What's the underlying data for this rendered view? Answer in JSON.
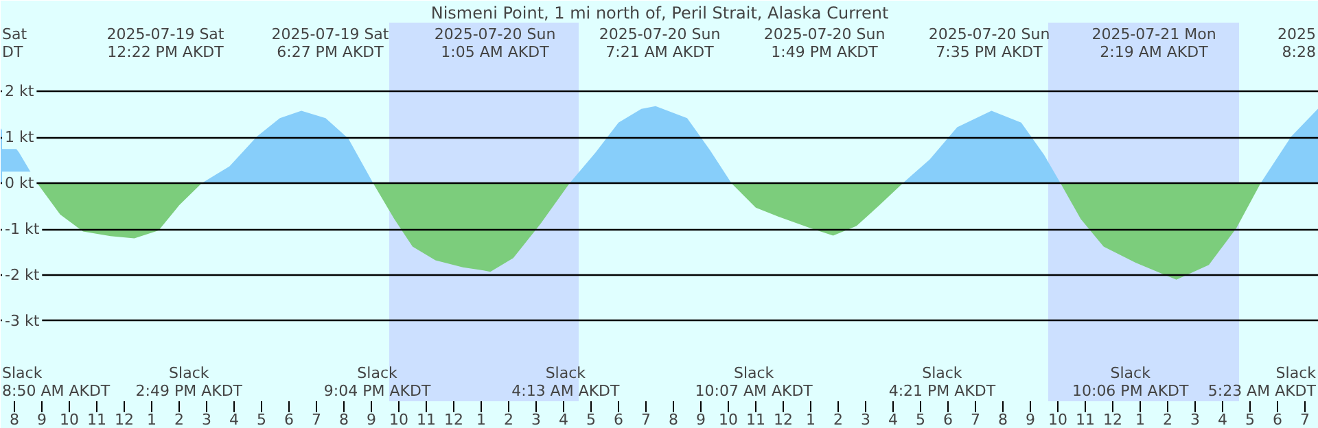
{
  "chart_data": {
    "type": "area",
    "title": "Nismeni Point, 1 mi north of, Peril Strait, Alaska Current",
    "x": [
      "2025-07-19T07:30",
      "2025-07-19T08:10",
      "2025-07-19T08:50",
      "2025-07-19T09:40",
      "2025-07-19T10:30",
      "2025-07-19T11:30",
      "2025-07-19T12:22",
      "2025-07-19T13:15",
      "2025-07-19T14:00",
      "2025-07-19T14:49",
      "2025-07-19T15:50",
      "2025-07-19T16:50",
      "2025-07-19T17:40",
      "2025-07-19T18:27",
      "2025-07-19T19:20",
      "2025-07-19T20:10",
      "2025-07-19T21:04",
      "2025-07-19T21:50",
      "2025-07-19T22:30",
      "2025-07-19T23:20",
      "2025-07-20T00:20",
      "2025-07-20T01:05",
      "2025-07-20T01:20",
      "2025-07-20T02:10",
      "2025-07-20T03:10",
      "2025-07-20T04:13",
      "2025-07-20T05:10",
      "2025-07-20T06:00",
      "2025-07-20T06:50",
      "2025-07-20T07:21",
      "2025-07-20T08:30",
      "2025-07-20T09:20",
      "2025-07-20T10:07",
      "2025-07-20T11:00",
      "2025-07-20T11:50",
      "2025-07-20T13:00",
      "2025-07-20T13:49",
      "2025-07-20T14:40",
      "2025-07-20T15:30",
      "2025-07-20T16:21",
      "2025-07-20T17:20",
      "2025-07-20T18:20",
      "2025-07-20T19:35",
      "2025-07-20T20:40",
      "2025-07-20T21:30",
      "2025-07-20T22:06",
      "2025-07-20T22:50",
      "2025-07-20T23:40",
      "2025-07-21T00:50",
      "2025-07-21T02:19",
      "2025-07-21T03:30",
      "2025-07-21T04:30",
      "2025-07-21T05:23",
      "2025-07-21T06:30",
      "2025-07-21T07:30"
    ],
    "series": [
      {
        "color": "#87cefa",
        "values": [
          1.2,
          0.67,
          0,
          null,
          null,
          null,
          null,
          null,
          null,
          0,
          0.37,
          1.02,
          1.42,
          1.58,
          1.42,
          0.97,
          0,
          null,
          null,
          null,
          null,
          null,
          null,
          null,
          null,
          0,
          0.67,
          1.32,
          1.62,
          1.68,
          1.42,
          0.72,
          0,
          null,
          null,
          null,
          null,
          null,
          null,
          0,
          0.52,
          1.22,
          1.58,
          1.32,
          0.62,
          0,
          null,
          null,
          null,
          null,
          null,
          null,
          0,
          1.02,
          1.64
        ]
      },
      {
        "color": "#7ccd7c",
        "values": [
          null,
          null,
          0,
          -0.68,
          -1.05,
          -1.15,
          -1.2,
          -1.03,
          -0.48,
          0,
          null,
          null,
          null,
          null,
          null,
          null,
          0,
          -0.78,
          -1.38,
          -1.68,
          -1.83,
          -1.9,
          -1.93,
          -1.63,
          -0.88,
          0,
          null,
          null,
          null,
          null,
          null,
          null,
          0,
          -0.53,
          -0.73,
          -0.98,
          -1.14,
          -0.93,
          -0.48,
          0,
          null,
          null,
          null,
          null,
          null,
          0,
          -0.78,
          -1.38,
          -1.73,
          -2.1,
          -1.78,
          -0.98,
          0,
          null,
          null
        ]
      }
    ],
    "xlim": [
      "2025-07-19T07:30",
      "2025-07-21T07:30"
    ],
    "ylim": [
      -4.75,
      3.5
    ],
    "xticks": [
      {
        "value": "2025-07-19T08:00",
        "label": "8"
      },
      {
        "value": "2025-07-19T09:00",
        "label": "9"
      },
      {
        "value": "2025-07-19T10:00",
        "label": "10"
      },
      {
        "value": "2025-07-19T11:00",
        "label": "11"
      },
      {
        "value": "2025-07-19T12:00",
        "label": "12"
      },
      {
        "value": "2025-07-19T13:00",
        "label": "1"
      },
      {
        "value": "2025-07-19T14:00",
        "label": "2"
      },
      {
        "value": "2025-07-19T15:00",
        "label": "3"
      },
      {
        "value": "2025-07-19T16:00",
        "label": "4"
      },
      {
        "value": "2025-07-19T17:00",
        "label": "5"
      },
      {
        "value": "2025-07-19T18:00",
        "label": "6"
      },
      {
        "value": "2025-07-19T19:00",
        "label": "7"
      },
      {
        "value": "2025-07-19T20:00",
        "label": "8"
      },
      {
        "value": "2025-07-19T21:00",
        "label": "9"
      },
      {
        "value": "2025-07-19T22:00",
        "label": "10"
      },
      {
        "value": "2025-07-19T23:00",
        "label": "11"
      },
      {
        "value": "2025-07-20T00:00",
        "label": "12"
      },
      {
        "value": "2025-07-20T01:00",
        "label": "1"
      },
      {
        "value": "2025-07-20T02:00",
        "label": "2"
      },
      {
        "value": "2025-07-20T03:00",
        "label": "3"
      },
      {
        "value": "2025-07-20T04:00",
        "label": "4"
      },
      {
        "value": "2025-07-20T05:00",
        "label": "5"
      },
      {
        "value": "2025-07-20T06:00",
        "label": "6"
      },
      {
        "value": "2025-07-20T07:00",
        "label": "7"
      },
      {
        "value": "2025-07-20T08:00",
        "label": "8"
      },
      {
        "value": "2025-07-20T09:00",
        "label": "9"
      },
      {
        "value": "2025-07-20T10:00",
        "label": "10"
      },
      {
        "value": "2025-07-20T11:00",
        "label": "11"
      },
      {
        "value": "2025-07-20T12:00",
        "label": "12"
      },
      {
        "value": "2025-07-20T13:00",
        "label": "1"
      },
      {
        "value": "2025-07-20T14:00",
        "label": "2"
      },
      {
        "value": "2025-07-20T15:00",
        "label": "3"
      },
      {
        "value": "2025-07-20T16:00",
        "label": "4"
      },
      {
        "value": "2025-07-20T17:00",
        "label": "5"
      },
      {
        "value": "2025-07-20T18:00",
        "label": "6"
      },
      {
        "value": "2025-07-20T19:00",
        "label": "7"
      },
      {
        "value": "2025-07-20T20:00",
        "label": "8"
      },
      {
        "value": "2025-07-20T21:00",
        "label": "9"
      },
      {
        "value": "2025-07-20T22:00",
        "label": "10"
      },
      {
        "value": "2025-07-20T23:00",
        "label": "11"
      },
      {
        "value": "2025-07-21T00:00",
        "label": "12"
      },
      {
        "value": "2025-07-21T01:00",
        "label": "1"
      },
      {
        "value": "2025-07-21T02:00",
        "label": "2"
      },
      {
        "value": "2025-07-21T03:00",
        "label": "3"
      },
      {
        "value": "2025-07-21T04:00",
        "label": "4"
      },
      {
        "value": "2025-07-21T05:00",
        "label": "5"
      },
      {
        "value": "2025-07-21T06:00",
        "label": "6"
      },
      {
        "value": "2025-07-21T07:00",
        "label": "7"
      }
    ],
    "yticks": [
      {
        "value": 2,
        "label": "2 kt"
      },
      {
        "value": 1,
        "label": "1 kt"
      },
      {
        "value": 0,
        "label": "0 kt"
      },
      {
        "value": -1,
        "label": "-1 kt"
      },
      {
        "value": -2,
        "label": "-2 kt"
      },
      {
        "value": -3,
        "label": "-3 kt"
      }
    ],
    "grid": "y",
    "bands": [
      {
        "axis": "x",
        "from": "2025-07-19T21:39",
        "to": "2025-07-20T04:33",
        "color": "#cce0ff"
      },
      {
        "axis": "x",
        "from": "2025-07-20T21:39",
        "to": "2025-07-21T04:36",
        "color": "#cce0ff"
      }
    ],
    "annotations": [
      "Sat\nDT",
      "2025-07-19 Sat\n12:22 PM AKDT",
      "2025-07-19 Sat\n6:27 PM AKDT",
      "2025-07-20 Sun\n1:05 AM AKDT",
      "2025-07-20 Sun\n7:21 AM AKDT",
      "2025-07-20 Sun\n1:49 PM AKDT",
      "2025-07-20 Sun\n7:35 PM AKDT",
      "2025-07-21 Mon\n2:19 AM AKDT",
      "2025\n8:28",
      "Slack\n8:50 AM AKDT",
      "Slack\n2:49 PM AKDT",
      "Slack\n9:04 PM AKDT",
      "Slack\n4:13 AM AKDT",
      "Slack\n10:07 AM AKDT",
      "Slack\n4:21 PM AKDT",
      "Slack\n10:06 PM AKDT",
      "Slack\n5:23 AM AKDT"
    ]
  }
}
